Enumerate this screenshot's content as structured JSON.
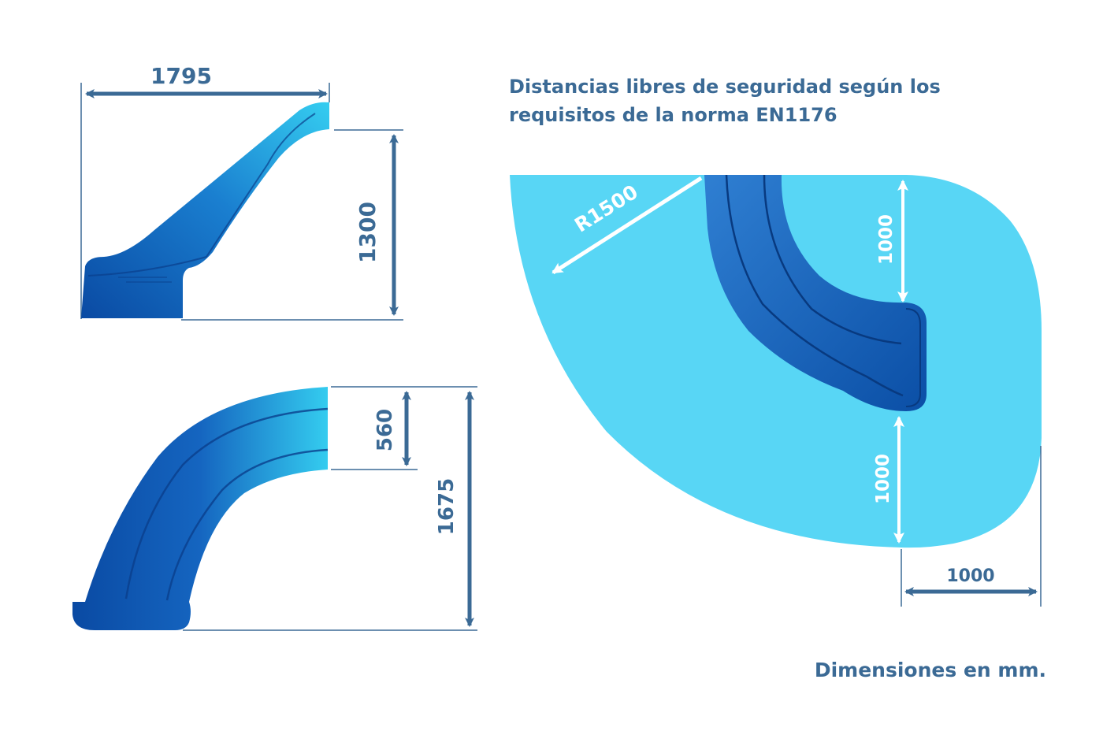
{
  "heading": {
    "line1": "Distancias libres de seguridad según los",
    "line2": "requisitos de la norma EN1176"
  },
  "side_view": {
    "width_label": "1795",
    "height_label": "1300"
  },
  "plan_view": {
    "width_inner_label": "560",
    "depth_label": "1675"
  },
  "safety_zone": {
    "radius_label": "R1500",
    "clearance_top_label": "1000",
    "clearance_bottom_label": "1000",
    "clearance_side_label": "1000"
  },
  "footnote": "Dimensiones en mm.",
  "colors": {
    "slide_dark": "#0b4fa6",
    "slide_light": "#2fc6ec",
    "zone": "#58d6f5",
    "dimension": "#3b6a95",
    "text": "#3b6a95"
  }
}
